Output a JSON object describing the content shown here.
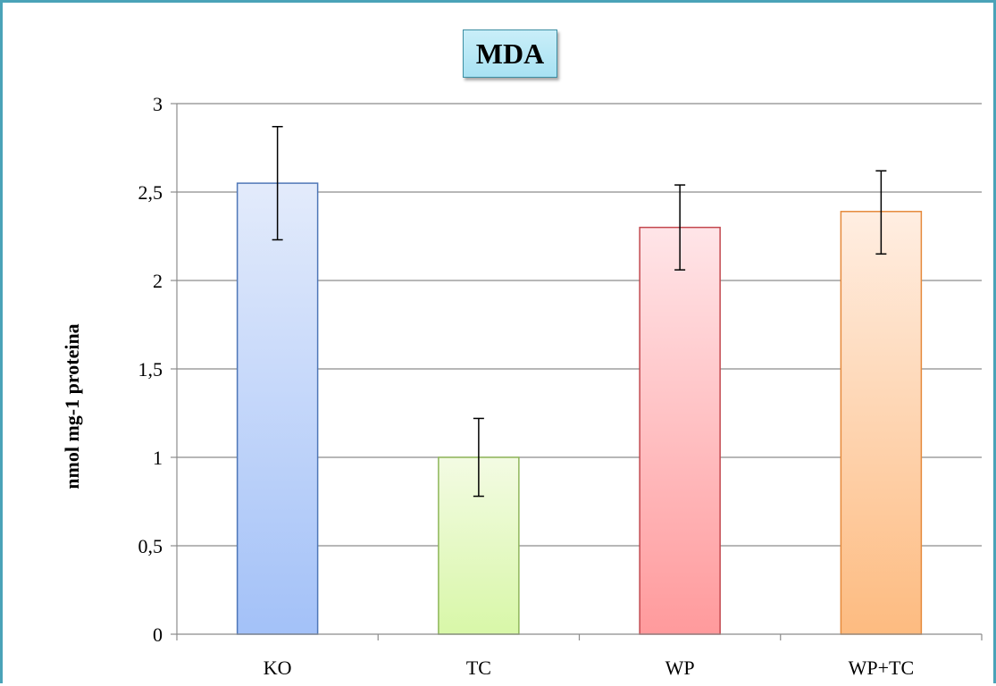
{
  "chart_data": {
    "type": "bar",
    "title": "MDA",
    "ylabel": "nmol mg-1 proteina",
    "xlabel": "",
    "categories": [
      "KO",
      "TC",
      "WP",
      "WP+TC"
    ],
    "values": [
      2.55,
      1.0,
      2.3,
      2.39
    ],
    "error_bars": [
      [
        2.23,
        2.87
      ],
      [
        0.78,
        1.22
      ],
      [
        2.06,
        2.54
      ],
      [
        2.15,
        2.62
      ]
    ],
    "ylim": [
      0,
      3
    ],
    "yticks": [
      0,
      0.5,
      1,
      1.5,
      2,
      2.5,
      3
    ],
    "ytick_labels": [
      "0",
      "0,5",
      "1",
      "1,5",
      "2",
      "2,5",
      "3"
    ],
    "grid": true,
    "legend": "none",
    "colors": [
      {
        "top": "#e3ebfb",
        "bottom": "#a3c1f8",
        "stroke": "#4f77b7"
      },
      {
        "top": "#f3fbe3",
        "bottom": "#d8f7a8",
        "stroke": "#8fb65b"
      },
      {
        "top": "#ffe5e8",
        "bottom": "#ff9a9c",
        "stroke": "#c2484e"
      },
      {
        "top": "#ffeee2",
        "bottom": "#fdbb80",
        "stroke": "#e58a3c"
      }
    ]
  }
}
